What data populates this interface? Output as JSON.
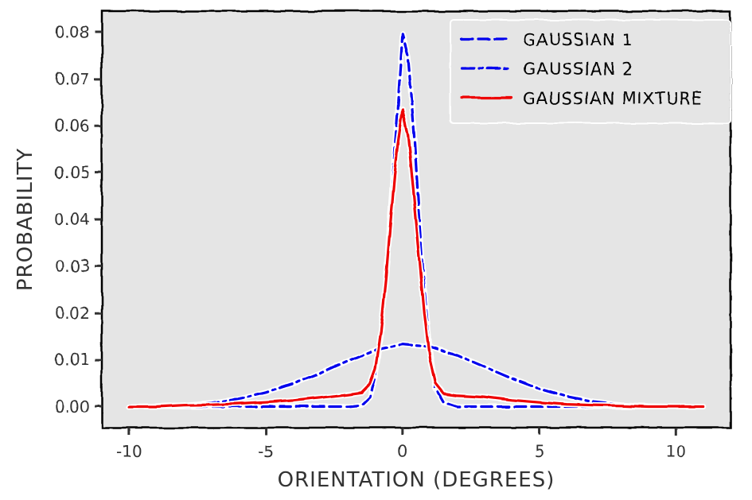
{
  "chart_data": {
    "type": "line",
    "xlabel": "ORIENTATION (DEGREES)",
    "ylabel": "PROBABILITY",
    "xlim": [
      -11,
      12
    ],
    "ylim": [
      -0.0045,
      0.0845
    ],
    "xticks": [
      -10,
      -5,
      0,
      5,
      10
    ],
    "xtick_labels": [
      "-10",
      "-5",
      "0",
      "5",
      "10"
    ],
    "yticks": [
      0.0,
      0.01,
      0.02,
      0.03,
      0.04,
      0.05,
      0.06,
      0.07,
      0.08
    ],
    "ytick_labels": [
      "0.00",
      "0.01",
      "0.02",
      "0.03",
      "0.04",
      "0.05",
      "0.06",
      "0.07",
      "0.08"
    ],
    "grid": false,
    "legend_position": "top-right",
    "background": "#e5e5e5",
    "series": [
      {
        "name": "GAUSSIAN 1",
        "color": "#0000ee",
        "style": "dashed",
        "x": [
          -10,
          -8,
          -6,
          -4,
          -3,
          -2,
          -1.5,
          -1.2,
          -1.0,
          -0.8,
          -0.6,
          -0.4,
          -0.2,
          0.0,
          0.2,
          0.4,
          0.6,
          0.8,
          1.0,
          1.2,
          1.5,
          2,
          3,
          4,
          6,
          8,
          10,
          11
        ],
        "y": [
          0.0,
          0.0,
          0.0,
          0.0,
          0.0,
          0.0,
          0.0003,
          0.002,
          0.0065,
          0.015,
          0.028,
          0.045,
          0.062,
          0.0795,
          0.075,
          0.06,
          0.042,
          0.025,
          0.012,
          0.004,
          0.001,
          0.0,
          0.0,
          0.0,
          0.0,
          0.0,
          0.0,
          0.0
        ]
      },
      {
        "name": "GAUSSIAN 2",
        "color": "#0000ee",
        "style": "dashdot",
        "x": [
          -10,
          -9,
          -8,
          -7,
          -6,
          -5,
          -4,
          -3,
          -2,
          -1,
          0,
          1,
          2,
          3,
          4,
          5,
          6,
          7,
          8,
          9,
          10,
          11
        ],
        "y": [
          0.0,
          0.0001,
          0.0003,
          0.0008,
          0.0016,
          0.003,
          0.0049,
          0.0072,
          0.0098,
          0.0121,
          0.0133,
          0.0128,
          0.011,
          0.0085,
          0.006,
          0.0038,
          0.0021,
          0.001,
          0.0004,
          0.0001,
          0.0,
          0.0
        ]
      },
      {
        "name": "GAUSSIAN MIXTURE",
        "color": "#ee0000",
        "style": "solid",
        "x": [
          -10,
          -9,
          -8,
          -7,
          -6,
          -5,
          -4,
          -3,
          -2,
          -1.5,
          -1.2,
          -1.0,
          -0.8,
          -0.6,
          -0.4,
          -0.2,
          0.0,
          0.2,
          0.4,
          0.6,
          0.8,
          1.0,
          1.2,
          1.5,
          2,
          3,
          4,
          5,
          6,
          7,
          8,
          9,
          10,
          11
        ],
        "y": [
          0.0,
          0.0,
          0.0003,
          0.0004,
          0.0006,
          0.0009,
          0.0013,
          0.0019,
          0.0026,
          0.003,
          0.0048,
          0.008,
          0.016,
          0.028,
          0.042,
          0.055,
          0.0635,
          0.058,
          0.046,
          0.033,
          0.02,
          0.01,
          0.005,
          0.0028,
          0.0024,
          0.0021,
          0.0014,
          0.0009,
          0.0005,
          0.0003,
          0.0002,
          0.0,
          0.0,
          0.0
        ]
      }
    ]
  }
}
